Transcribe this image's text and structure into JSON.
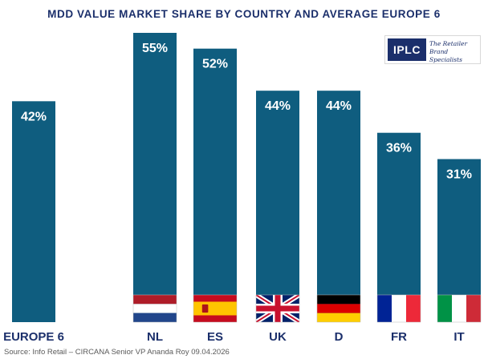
{
  "chart_data": {
    "type": "bar",
    "title": "MDD VALUE MARKET SHARE BY COUNTRY AND AVERAGE EUROPE 6",
    "categories": [
      "EUROPE 6",
      "NL",
      "ES",
      "UK",
      "D",
      "FR",
      "IT"
    ],
    "values": [
      42,
      55,
      52,
      44,
      44,
      36,
      31
    ],
    "value_labels": [
      "42%",
      "55%",
      "52%",
      "44%",
      "44%",
      "36%",
      "31%"
    ],
    "ylim": [
      0,
      55
    ],
    "grid": false,
    "xlabel": "",
    "ylabel": "",
    "flags": [
      null,
      "netherlands-flag",
      "spain-flag",
      "uk-flag",
      "germany-flag",
      "france-flag",
      "italy-flag"
    ],
    "colors": {
      "bar": "#0f5d7f",
      "title": "#1b2f6b",
      "value_label": "#ffffff",
      "category_label": "#1b2f6b",
      "source": "#5a5a5a"
    }
  },
  "logo": {
    "mark": "IPLC",
    "tagline": "The Retailer Brand Specialists"
  },
  "source": "Source:  Info Retail – CIRCANA  Senior VP Ananda Roy 09.04.2026"
}
